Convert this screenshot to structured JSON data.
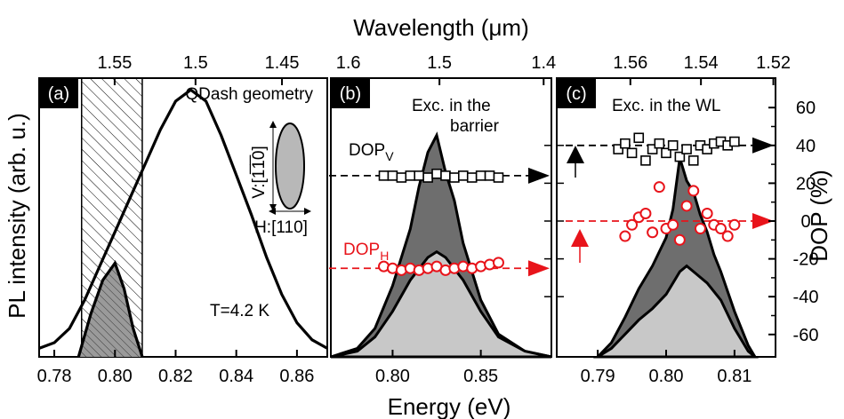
{
  "chart_data": {
    "type": "area",
    "axis_labels": {
      "top": "Wavelength (μm)",
      "bottom": "Energy (eV)",
      "left": "PL intensity (arb. u.)",
      "right": "DOP (%)"
    },
    "right_ticks": [
      "60",
      "40",
      "20",
      "0",
      "-20",
      "-40",
      "-60"
    ],
    "right_tick_values": [
      60,
      40,
      20,
      0,
      -20,
      -40,
      -60
    ],
    "panels": [
      {
        "label": "(a)",
        "xlim": [
          0.775,
          0.87
        ],
        "bottom_ticks": [
          "0.78",
          "0.80",
          "0.82",
          "0.84",
          "0.86"
        ],
        "bottom_tick_values": [
          0.78,
          0.8,
          0.82,
          0.84,
          0.86
        ],
        "top_ticks": [
          "1.55",
          "1.5",
          "1.45"
        ],
        "top_tick_values": [
          1.55,
          1.5,
          1.45
        ],
        "hatched_range": [
          0.789,
          0.809
        ],
        "annotations": {
          "temperature": "T=4.2 K",
          "geometry": "QDash geometry",
          "v_axis": "V:[1̅1̅0]",
          "h_axis": "H:[110]"
        },
        "curves": {
          "total_pl": {
            "x": [
              0.775,
              0.78,
              0.785,
              0.79,
              0.795,
              0.8,
              0.805,
              0.81,
              0.815,
              0.82,
              0.825,
              0.83,
              0.835,
              0.84,
              0.845,
              0.85,
              0.855,
              0.86,
              0.865,
              0.87
            ],
            "y": [
              0.03,
              0.05,
              0.1,
              0.2,
              0.32,
              0.44,
              0.56,
              0.68,
              0.8,
              0.9,
              0.94,
              0.9,
              0.78,
              0.64,
              0.5,
              0.35,
              0.22,
              0.12,
              0.06,
              0.03
            ]
          },
          "filtered_pl": {
            "x": [
              0.788,
              0.792,
              0.796,
              0.8,
              0.803,
              0.806,
              0.809
            ],
            "y": [
              0.0,
              0.15,
              0.27,
              0.33,
              0.24,
              0.1,
              0.0
            ]
          }
        }
      },
      {
        "label": "(b)",
        "xlim": [
          0.765,
          0.89
        ],
        "bottom_ticks": [
          "0.80",
          "0.85"
        ],
        "bottom_tick_values": [
          0.8,
          0.85
        ],
        "top_ticks": [
          "1.6",
          "1.5",
          "1.4"
        ],
        "top_tick_values": [
          1.6,
          1.5,
          1.4
        ],
        "annotations": {
          "excitation": "Exc. in the barrier",
          "dop_v": "DOP",
          "dop_v_sub": "V",
          "dop_h": "DOP",
          "dop_h_sub": "H"
        },
        "curves": {
          "v_polarized": {
            "x": [
              0.765,
              0.78,
              0.79,
              0.8,
              0.81,
              0.815,
              0.82,
              0.825,
              0.83,
              0.835,
              0.84,
              0.85,
              0.86,
              0.875,
              0.89
            ],
            "y": [
              0.0,
              0.03,
              0.1,
              0.25,
              0.45,
              0.6,
              0.72,
              0.78,
              0.65,
              0.55,
              0.4,
              0.2,
              0.08,
              0.02,
              0.0
            ]
          },
          "h_polarized": {
            "x": [
              0.765,
              0.78,
              0.79,
              0.8,
              0.81,
              0.82,
              0.825,
              0.83,
              0.84,
              0.85,
              0.86,
              0.875,
              0.89
            ],
            "y": [
              0.0,
              0.02,
              0.07,
              0.16,
              0.27,
              0.35,
              0.37,
              0.35,
              0.27,
              0.16,
              0.07,
              0.02,
              0.0
            ]
          }
        },
        "dop_v_points": {
          "x": [
            0.795,
            0.8,
            0.805,
            0.81,
            0.815,
            0.82,
            0.825,
            0.83,
            0.835,
            0.84,
            0.845,
            0.85,
            0.855,
            0.86
          ],
          "y": [
            24,
            24,
            23,
            24,
            24,
            23,
            25,
            24,
            23,
            24,
            23,
            24,
            24,
            23
          ]
        },
        "dop_h_points": {
          "x": [
            0.795,
            0.8,
            0.805,
            0.81,
            0.815,
            0.82,
            0.825,
            0.83,
            0.835,
            0.84,
            0.845,
            0.85,
            0.855,
            0.86
          ],
          "y": [
            -24,
            -25,
            -26,
            -25,
            -26,
            -25,
            -24,
            -26,
            -25,
            -24,
            -25,
            -24,
            -23,
            -22
          ]
        },
        "dop_v_level": 24,
        "dop_h_level": -25
      },
      {
        "label": "(c)",
        "xlim": [
          0.784,
          0.816
        ],
        "bottom_ticks": [
          "0.79",
          "0.80",
          "0.81"
        ],
        "bottom_tick_values": [
          0.79,
          0.8,
          0.81
        ],
        "top_ticks": [
          "1.56",
          "1.54",
          "1.52"
        ],
        "top_tick_values": [
          1.56,
          1.54,
          1.52
        ],
        "annotations": {
          "excitation": "Exc. in the WL"
        },
        "curves": {
          "v_polarized": {
            "x": [
              0.79,
              0.792,
              0.794,
              0.796,
              0.798,
              0.8,
              0.801,
              0.802,
              0.803,
              0.804,
              0.805,
              0.806,
              0.807,
              0.808,
              0.81,
              0.812,
              0.813
            ],
            "y": [
              0.0,
              0.05,
              0.14,
              0.24,
              0.32,
              0.42,
              0.52,
              0.7,
              0.62,
              0.58,
              0.5,
              0.44,
              0.36,
              0.3,
              0.16,
              0.04,
              0.0
            ]
          },
          "h_polarized": {
            "x": [
              0.79,
              0.792,
              0.794,
              0.796,
              0.798,
              0.8,
              0.802,
              0.803,
              0.804,
              0.806,
              0.808,
              0.81,
              0.812,
              0.813
            ],
            "y": [
              0.0,
              0.03,
              0.08,
              0.13,
              0.17,
              0.22,
              0.3,
              0.32,
              0.3,
              0.26,
              0.2,
              0.1,
              0.02,
              0.0
            ]
          }
        },
        "dop_v_points": {
          "x": [
            0.793,
            0.794,
            0.795,
            0.796,
            0.797,
            0.798,
            0.799,
            0.8,
            0.801,
            0.802,
            0.803,
            0.804,
            0.805,
            0.806,
            0.807,
            0.808,
            0.809,
            0.81
          ],
          "y": [
            38,
            41,
            36,
            44,
            32,
            38,
            41,
            36,
            40,
            34,
            38,
            32,
            40,
            38,
            41,
            42,
            40,
            42
          ]
        },
        "dop_h_points": {
          "x": [
            0.794,
            0.795,
            0.796,
            0.797,
            0.798,
            0.799,
            0.8,
            0.801,
            0.802,
            0.803,
            0.804,
            0.805,
            0.806,
            0.807,
            0.808,
            0.809,
            0.81
          ],
          "y": [
            -8,
            -2,
            2,
            4,
            -6,
            18,
            -4,
            -2,
            -10,
            8,
            16,
            -4,
            4,
            -2,
            -4,
            -8,
            -2
          ]
        },
        "dop_v_level": 40,
        "dop_h_level": 0
      }
    ]
  }
}
